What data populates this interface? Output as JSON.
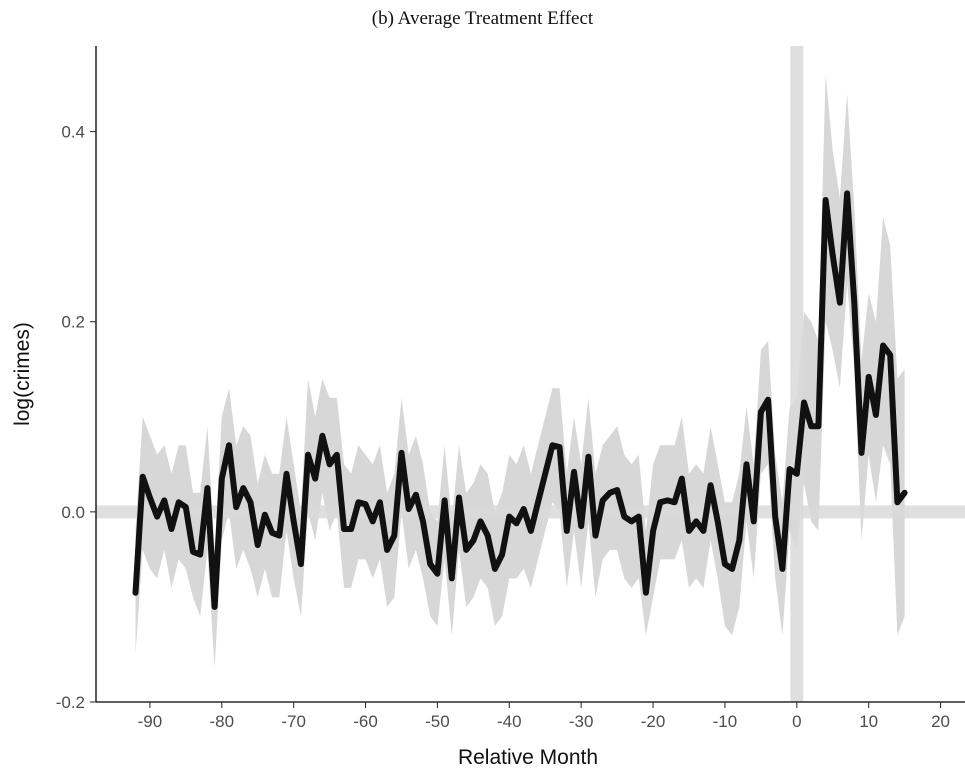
{
  "chart_data": {
    "type": "line",
    "title": "(b) Average Treatment Effect",
    "xlabel": "Relative Month",
    "ylabel": "log(crimes)",
    "xlim": [
      -97.5,
      23.4
    ],
    "ylim": [
      -0.2,
      0.49
    ],
    "x_ticks": [
      -90,
      -80,
      -70,
      -60,
      -50,
      -40,
      -30,
      -20,
      -10,
      0,
      10,
      20
    ],
    "x_tick_labels": [
      "-90",
      "-80",
      "-70",
      "-60",
      "-50",
      "-40",
      "-30",
      "-20",
      "-10",
      "0",
      "10",
      "20"
    ],
    "y_ticks": [
      -0.2,
      0.0,
      0.2,
      0.4
    ],
    "y_tick_labels": [
      "-0.2",
      "0.0",
      "0.2",
      "0.4"
    ],
    "grid": false,
    "legend": "none",
    "reference_lines": {
      "horizontal_y": 0,
      "vertical_x": 0,
      "color": "#d9d9d9"
    },
    "colors": {
      "line": "#111111",
      "band": "#d3d3d3",
      "axis": "#000000"
    },
    "series": [
      {
        "x": [
          -92,
          -91,
          -90,
          -89,
          -88,
          -87,
          -86,
          -85,
          -84,
          -83,
          -82,
          -81,
          -80,
          -79,
          -78,
          -77,
          -76,
          -75,
          -74,
          -73,
          -72,
          -71,
          -70,
          -69,
          -68,
          -67,
          -66,
          -65,
          -64,
          -63,
          -62,
          -61,
          -60,
          -59,
          -58,
          -57,
          -56,
          -55,
          -54,
          -53,
          -52,
          -51,
          -50,
          -49,
          -48,
          -47,
          -46,
          -45,
          -44,
          -43,
          -42,
          -41,
          -40,
          -39,
          -38,
          -37,
          -36,
          -35,
          -34,
          -33,
          -32,
          -31,
          -30,
          -29,
          -28,
          -27,
          -26,
          -25,
          -24,
          -23,
          -22,
          -21,
          -20,
          -19,
          -18,
          -17,
          -16,
          -15,
          -14,
          -13,
          -12,
          -11,
          -10,
          -9,
          -8,
          -7,
          -6,
          -5,
          -4,
          -3,
          -2,
          -1,
          0,
          1,
          2,
          3,
          4,
          5,
          6,
          7,
          8,
          9,
          10,
          11,
          12,
          13,
          14,
          15
        ],
        "y": [
          -0.085,
          0.037,
          0.015,
          -0.005,
          0.012,
          -0.018,
          0.01,
          0.005,
          -0.042,
          -0.045,
          0.025,
          -0.1,
          0.035,
          0.07,
          0.005,
          0.025,
          0.01,
          -0.035,
          -0.003,
          -0.022,
          -0.025,
          0.04,
          -0.01,
          -0.055,
          0.06,
          0.035,
          0.08,
          0.05,
          0.06,
          -0.018,
          -0.018,
          0.01,
          0.008,
          -0.01,
          0.01,
          -0.04,
          -0.025,
          0.062,
          0.003,
          0.018,
          -0.01,
          -0.055,
          -0.065,
          0.012,
          -0.07,
          0.015,
          -0.04,
          -0.03,
          -0.01,
          -0.025,
          -0.06,
          -0.045,
          -0.005,
          -0.012,
          0.003,
          -0.02,
          0.01,
          0.04,
          0.07,
          0.068,
          -0.02,
          0.042,
          -0.015,
          0.058,
          -0.025,
          0.012,
          0.02,
          0.023,
          -0.005,
          -0.01,
          -0.005,
          -0.085,
          -0.02,
          0.01,
          0.012,
          0.01,
          0.035,
          -0.02,
          -0.01,
          -0.02,
          0.028,
          -0.01,
          -0.055,
          -0.06,
          -0.03,
          0.05,
          -0.01,
          0.105,
          0.118,
          -0.005,
          -0.06,
          0.045,
          0.04,
          0.115,
          0.09,
          0.09,
          0.328,
          0.27,
          0.22,
          0.335,
          0.22,
          0.062,
          0.142,
          0.102,
          0.175,
          0.165,
          0.01,
          0.02
        ]
      }
    ],
    "confidence_band": {
      "lower": [
        -0.15,
        -0.04,
        -0.06,
        -0.07,
        -0.04,
        -0.08,
        -0.05,
        -0.06,
        -0.09,
        -0.11,
        -0.04,
        -0.165,
        -0.03,
        0.0,
        -0.06,
        -0.04,
        -0.06,
        -0.09,
        -0.06,
        -0.09,
        -0.09,
        -0.02,
        -0.07,
        -0.11,
        0.0,
        -0.03,
        0.02,
        -0.02,
        -0.0,
        -0.08,
        -0.08,
        -0.05,
        -0.05,
        -0.07,
        -0.05,
        -0.1,
        -0.09,
        0.0,
        -0.06,
        -0.04,
        -0.07,
        -0.11,
        -0.12,
        -0.05,
        -0.13,
        -0.04,
        -0.1,
        -0.09,
        -0.07,
        -0.08,
        -0.12,
        -0.11,
        -0.07,
        -0.07,
        -0.06,
        -0.08,
        -0.05,
        -0.02,
        0.01,
        0.0,
        -0.08,
        -0.02,
        -0.08,
        -0.01,
        -0.09,
        -0.05,
        -0.04,
        -0.04,
        -0.07,
        -0.08,
        -0.07,
        -0.13,
        -0.09,
        -0.05,
        -0.05,
        -0.05,
        -0.03,
        -0.08,
        -0.07,
        -0.08,
        -0.03,
        -0.07,
        -0.12,
        -0.13,
        -0.1,
        -0.01,
        -0.07,
        0.04,
        0.05,
        -0.07,
        -0.13,
        -0.02,
        -0.04,
        0.03,
        -0.01,
        -0.02,
        0.2,
        0.17,
        0.13,
        0.24,
        0.15,
        -0.03,
        0.06,
        0.01,
        0.07,
        0.05,
        -0.13,
        -0.11
      ],
      "upper": [
        -0.02,
        0.1,
        0.08,
        0.06,
        0.07,
        0.04,
        0.07,
        0.07,
        0.02,
        0.02,
        0.09,
        -0.04,
        0.1,
        0.13,
        0.07,
        0.09,
        0.08,
        0.03,
        0.06,
        0.04,
        0.04,
        0.1,
        0.05,
        0.0,
        0.14,
        0.1,
        0.14,
        0.12,
        0.12,
        0.05,
        0.04,
        0.07,
        0.06,
        0.05,
        0.07,
        0.02,
        0.04,
        0.12,
        0.06,
        0.08,
        0.05,
        0.0,
        -0.01,
        0.07,
        -0.01,
        0.07,
        0.02,
        0.03,
        0.05,
        0.04,
        0.0,
        0.02,
        0.06,
        0.05,
        0.07,
        0.04,
        0.07,
        0.1,
        0.13,
        0.13,
        0.04,
        0.1,
        0.05,
        0.12,
        0.04,
        0.07,
        0.08,
        0.09,
        0.06,
        0.05,
        0.06,
        -0.02,
        0.05,
        0.07,
        0.07,
        0.07,
        0.1,
        0.04,
        0.05,
        0.04,
        0.09,
        0.05,
        0.01,
        0.01,
        0.04,
        0.11,
        0.05,
        0.17,
        0.18,
        0.06,
        0.01,
        0.11,
        0.12,
        0.21,
        0.2,
        0.18,
        0.46,
        0.38,
        0.33,
        0.44,
        0.32,
        0.16,
        0.23,
        0.2,
        0.31,
        0.28,
        0.14,
        0.15
      ]
    }
  }
}
